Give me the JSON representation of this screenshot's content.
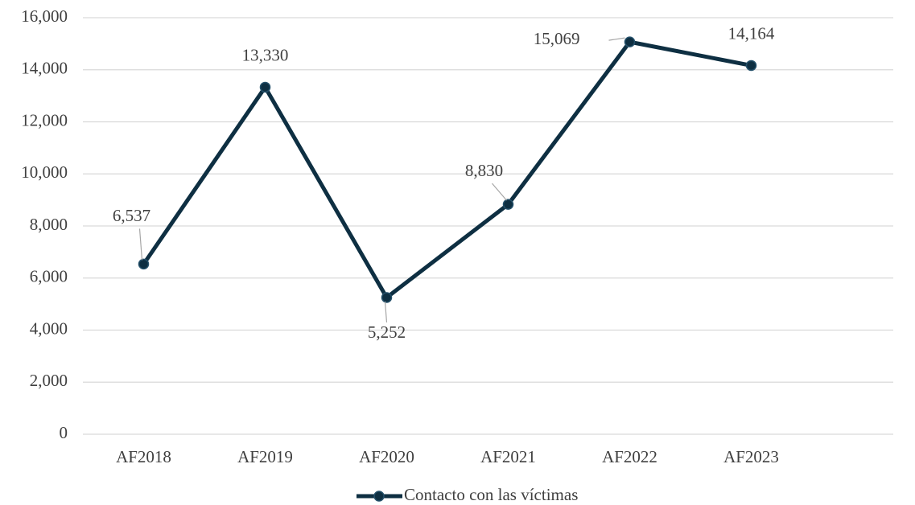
{
  "chart_data": {
    "type": "line",
    "categories": [
      "AF2018",
      "AF2019",
      "AF2020",
      "AF2021",
      "AF2022",
      "AF2023"
    ],
    "series": [
      {
        "name": "Contacto con las víctimas",
        "color": "#0e2f42",
        "values": [
          6537,
          13330,
          5252,
          8830,
          15069,
          14164
        ],
        "value_labels": [
          "6,537",
          "13,330",
          "5,252",
          "8,830",
          "15,069",
          "14,164"
        ]
      }
    ],
    "ylim": [
      0,
      16000
    ],
    "yticks": [
      0,
      {
        "value": 2000,
        "label": "2,000"
      },
      {
        "value": 4000,
        "label": "4,000"
      },
      {
        "value": 6000,
        "label": "6,000"
      },
      {
        "value": 8000,
        "label": "8,000"
      },
      {
        "value": 10000,
        "label": "10,000"
      },
      {
        "value": 12000,
        "label": "12,000"
      },
      {
        "value": 14000,
        "label": "14,000"
      },
      {
        "value": 16000,
        "label": "16,000"
      }
    ],
    "grid": true,
    "legend": "bottom"
  }
}
